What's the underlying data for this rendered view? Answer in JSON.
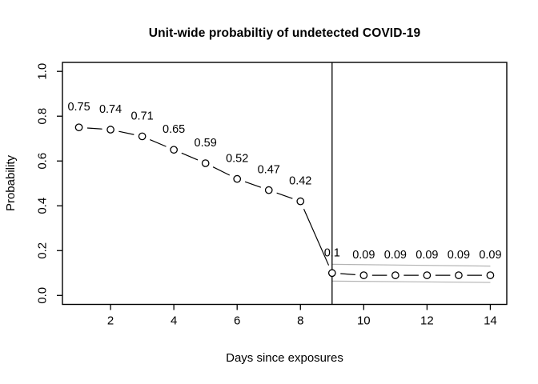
{
  "chart_data": {
    "type": "line",
    "title": "Unit-wide probabiltiy of undetected COVID-19",
    "xlabel": "Days since exposures",
    "ylabel": "Probability",
    "x": [
      1,
      2,
      3,
      4,
      5,
      6,
      7,
      8,
      9,
      10,
      11,
      12,
      13,
      14
    ],
    "y": [
      0.75,
      0.74,
      0.71,
      0.65,
      0.59,
      0.52,
      0.47,
      0.42,
      0.1,
      0.09,
      0.09,
      0.09,
      0.09,
      0.09
    ],
    "point_labels": [
      "0.75",
      "0.74",
      "0.71",
      "0.65",
      "0.59",
      "0.52",
      "0.47",
      "0.42",
      "0.1",
      "0.09",
      "0.09",
      "0.09",
      "0.09",
      "0.09"
    ],
    "xticks": [
      2,
      4,
      6,
      8,
      10,
      12,
      14
    ],
    "xtick_labels": [
      "2",
      "4",
      "6",
      "8",
      "10",
      "12",
      "14"
    ],
    "yticks": [
      0.0,
      0.2,
      0.4,
      0.6,
      0.8,
      1.0
    ],
    "ytick_labels": [
      "0.0",
      "0.2",
      "0.4",
      "0.6",
      "0.8",
      "1.0"
    ],
    "xlim": [
      0.48,
      14.52
    ],
    "ylim": [
      -0.04,
      1.04
    ],
    "grid": false,
    "legend": null,
    "marker": "open-circle",
    "plot_style": "points-with-gapped-segments",
    "vline_x": 9,
    "ci_band": {
      "x_start": 9,
      "x_end": 14,
      "upper": [
        0.139,
        0.131
      ],
      "lower": [
        0.064,
        0.058
      ]
    },
    "colors": {
      "foreground": "#000000",
      "band": "#b3b3b3",
      "background": "#ffffff"
    }
  }
}
